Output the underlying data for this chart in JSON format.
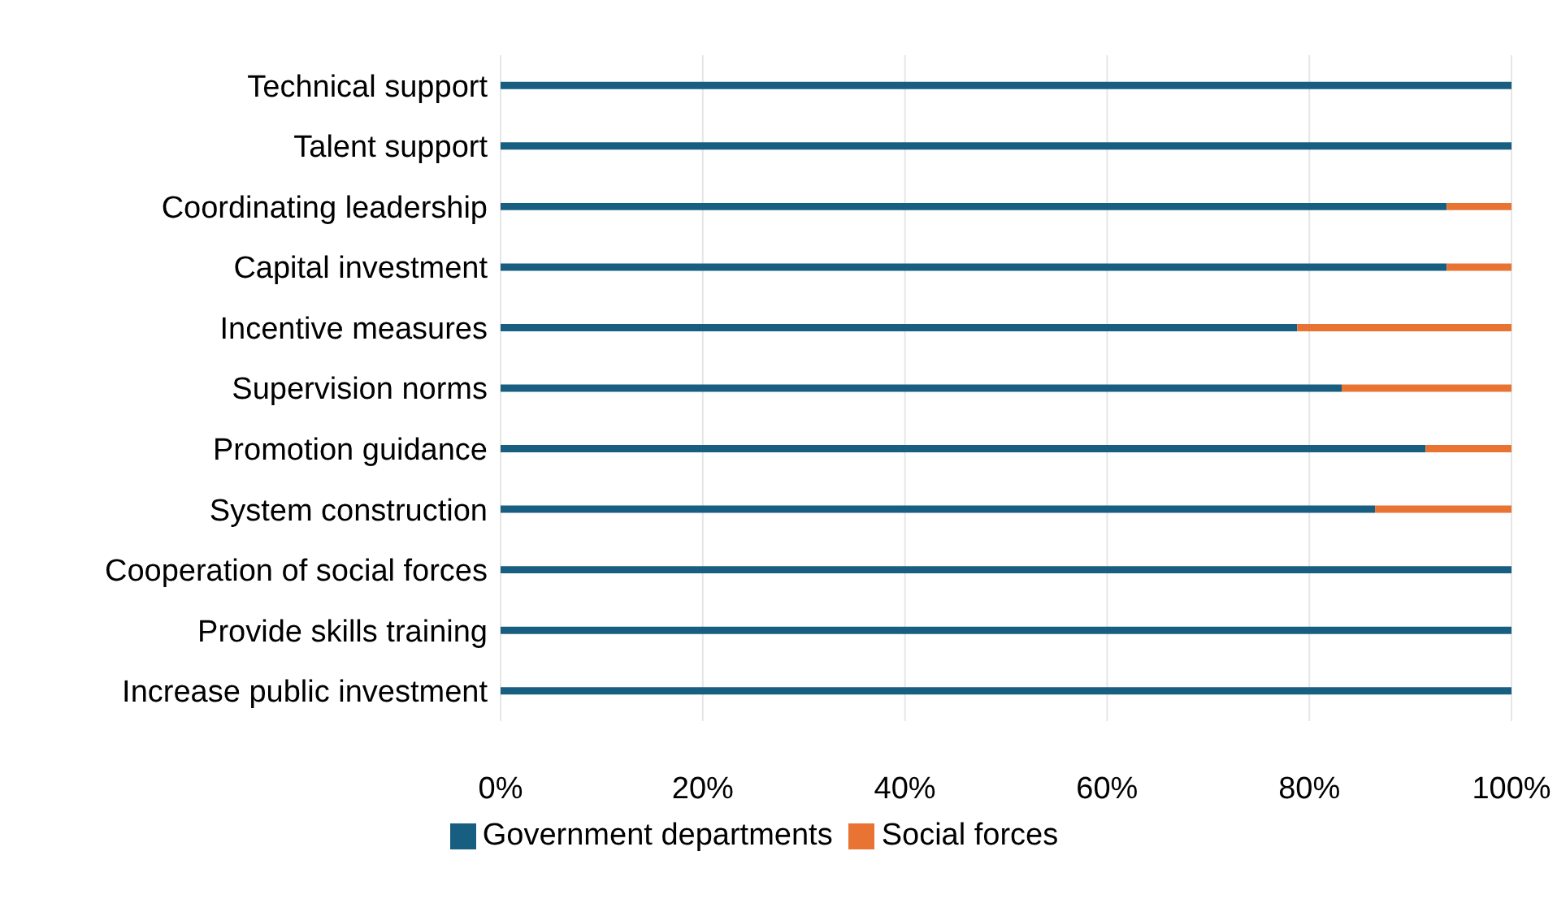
{
  "chart_data": {
    "type": "bar",
    "orientation": "horizontal",
    "stacked": true,
    "categories": [
      "Technical support",
      "Talent support",
      "Coordinating leadership",
      "Capital investment",
      "Incentive measures",
      "Supervision norms",
      "Promotion guidance",
      "System construction",
      "Cooperation of social forces",
      "Provide skills training",
      "Increase public investment"
    ],
    "series": [
      {
        "name": "Government departments",
        "color": "#175e80",
        "values": [
          100,
          100,
          93.6,
          93.6,
          78.8,
          83.2,
          91.5,
          86.5,
          100,
          100,
          100
        ]
      },
      {
        "name": "Social forces",
        "color": "#e97333",
        "values": [
          0,
          0,
          6.4,
          6.4,
          21.2,
          16.8,
          8.5,
          13.5,
          0,
          0,
          0
        ]
      }
    ],
    "xlim": [
      0,
      100
    ],
    "xticks": [
      {
        "value": 0,
        "label": "0%"
      },
      {
        "value": 20,
        "label": "20%"
      },
      {
        "value": 40,
        "label": "40%"
      },
      {
        "value": 60,
        "label": "60%"
      },
      {
        "value": 80,
        "label": "80%"
      },
      {
        "value": 100,
        "label": "100%"
      }
    ],
    "grid": "x",
    "legend": "bottom"
  }
}
